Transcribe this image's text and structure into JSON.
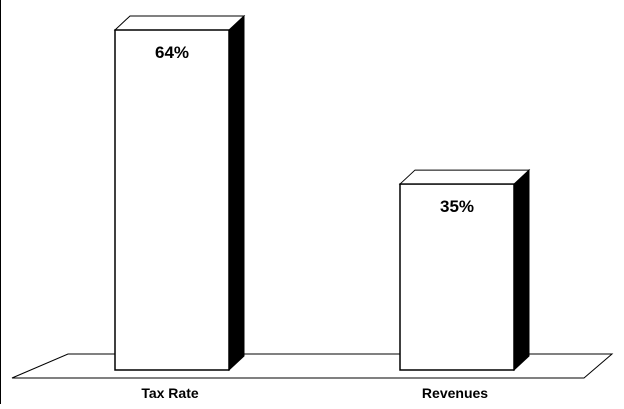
{
  "chart_data": {
    "type": "bar",
    "style": "3d",
    "categories": [
      "Tax Rate",
      "Revenues"
    ],
    "values": [
      64,
      35
    ],
    "data_labels": [
      "64%",
      "35%"
    ],
    "title": "",
    "xlabel": "",
    "ylabel": "",
    "ylim": [
      0,
      70
    ],
    "grid": false,
    "legend": "none",
    "colors": {
      "bar_face": "#ffffff",
      "bar_side": "#000000",
      "bar_top": "#ffffff",
      "outline": "#000000"
    }
  }
}
